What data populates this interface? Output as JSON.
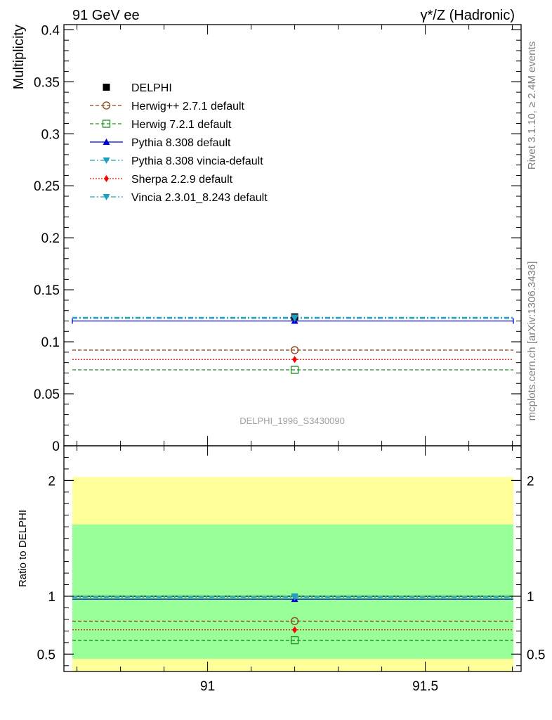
{
  "header": {
    "left": "91 GeV ee",
    "right": "γ*/Z (Hadronic)"
  },
  "side_labels": {
    "rivet": "Rivet 3.1.10, ≥ 2.4M events",
    "mcplots": "mcplots.cern.ch [arXiv:1306.3436]"
  },
  "watermark": "DELPHI_1996_S3430090",
  "chart_data": [
    {
      "type": "line",
      "panel": "main",
      "ylabel": "Multiplicity",
      "ylim": [
        0,
        0.405
      ],
      "xlim": [
        90.67,
        91.72
      ],
      "yticks": [
        0,
        0.05,
        0.1,
        0.15,
        0.2,
        0.25,
        0.3,
        0.35,
        0.4
      ],
      "ytick_labels": [
        "0",
        "0.05",
        "0.1",
        "0.15",
        "0.2",
        "0.25",
        "0.3",
        "0.35",
        "0.4"
      ],
      "legend_position": "top-left",
      "data_point": {
        "name": "DELPHI",
        "x": 91.2,
        "y": 0.124,
        "color": "#000000"
      },
      "series": [
        {
          "name": "Herwig++ 2.7.1 default",
          "value": 0.092,
          "color": "#8b4513",
          "dash": "dashed",
          "marker": "open-circle"
        },
        {
          "name": "Herwig 7.2.1 default",
          "value": 0.073,
          "color": "#228b22",
          "dash": "dashed",
          "marker": "open-square"
        },
        {
          "name": "Pythia 8.308 default",
          "value": 0.12,
          "color": "#0000cd",
          "dash": "solid",
          "marker": "triangle-up"
        },
        {
          "name": "Pythia 8.308 vincia-default",
          "value": 0.1225,
          "color": "#1e9fbf",
          "dash": "dashdot",
          "marker": "triangle-down"
        },
        {
          "name": "Sherpa 2.2.9 default",
          "value": 0.083,
          "color": "#ff0000",
          "dash": "dotted",
          "marker": "diamond"
        },
        {
          "name": "Vincia 2.3.01_8.243 default",
          "value": 0.1235,
          "color": "#1e9fbf",
          "dash": "dashdot",
          "marker": "triangle-down"
        }
      ]
    },
    {
      "type": "line",
      "panel": "ratio",
      "ylabel": "Ratio to DELPHI",
      "ylim": [
        0.35,
        2.3
      ],
      "yticks": [
        0.5,
        1,
        2
      ],
      "ytick_labels": [
        "0.5",
        "1",
        "2"
      ],
      "xticks": [
        91,
        91.5
      ],
      "xtick_labels": [
        "91",
        "91.5"
      ],
      "bands": [
        {
          "name": "yellow",
          "low": 0.33,
          "high": 2.03,
          "color": "#ffff99"
        },
        {
          "name": "green",
          "low": 0.46,
          "high": 1.62,
          "color": "#99ff99"
        }
      ],
      "series": [
        {
          "name": "Herwig++ 2.7.1 default",
          "value": 0.785
        },
        {
          "name": "Herwig 7.2.1 default",
          "value": 0.62
        },
        {
          "name": "Pythia 8.308 default",
          "value": 0.975
        },
        {
          "name": "Pythia 8.308 vincia-default",
          "value": 0.99
        },
        {
          "name": "Sherpa 2.2.9 default",
          "value": 0.71
        },
        {
          "name": "Vincia 2.3.01_8.243 default",
          "value": 1.0
        }
      ]
    }
  ]
}
